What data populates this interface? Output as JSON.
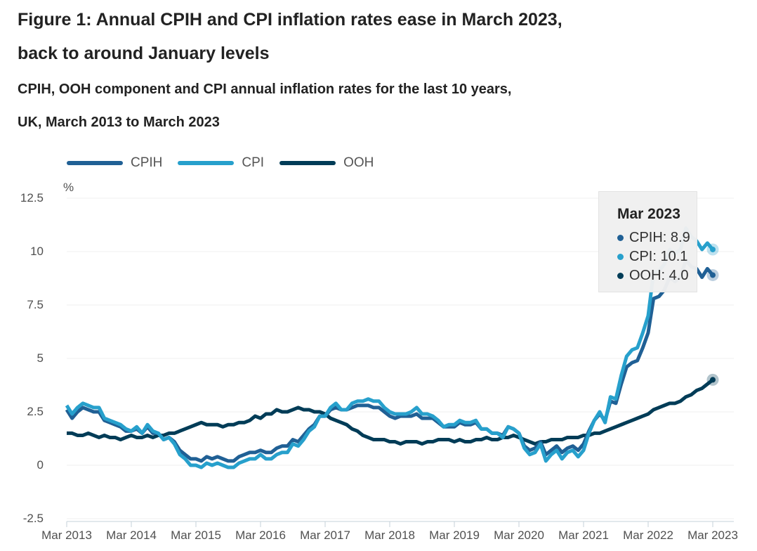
{
  "header": {
    "title_line1": "Figure 1: Annual CPIH and CPI inflation rates ease in March 2023,",
    "title_line2": "back to around January levels",
    "subtitle_line1": "CPIH, OOH component and CPI annual inflation rates for the last 10 years,",
    "subtitle_line2": "UK, March 2013 to March 2023"
  },
  "legend": {
    "items": [
      {
        "label": "CPIH",
        "color": "#206095"
      },
      {
        "label": "CPI",
        "color": "#27A0CC"
      },
      {
        "label": "OOH",
        "color": "#003C57"
      }
    ]
  },
  "tooltip": {
    "date": "Mar 2023",
    "rows": [
      {
        "text": "CPIH: 8.9",
        "color": "#206095"
      },
      {
        "text": "CPI: 10.1",
        "color": "#27A0CC"
      },
      {
        "text": "OOH: 4.0",
        "color": "#003C57"
      }
    ]
  },
  "colors": {
    "gridline": "#efefef",
    "axis": "#c5d1da",
    "tick_text": "#505050"
  },
  "chart_data": {
    "type": "line",
    "title": "CPIH, OOH component and CPI annual inflation rates for the last 10 years, UK, March 2013 to March 2023",
    "ylabel": "%",
    "xlabel": "",
    "ylim": [
      -2.5,
      12.5
    ],
    "grid": "horizontal",
    "legend_position": "top",
    "x_start": "Mar 2013",
    "x_end": "Mar 2023",
    "frequency": "monthly",
    "y_ticks": [
      -2.5,
      0,
      2.5,
      5,
      7.5,
      10,
      12.5
    ],
    "y_tick_labels": [
      "-2.5",
      "0",
      "2.5",
      "5",
      "7.5",
      "10",
      "12.5"
    ],
    "x_tick_labels": [
      "Mar 2013",
      "Mar 2014",
      "Mar 2015",
      "Mar 2016",
      "Mar 2017",
      "Mar 2018",
      "Mar 2019",
      "Mar 2020",
      "Mar 2021",
      "Mar 2022",
      "Mar 2023"
    ],
    "x_tick_month_indices": [
      0,
      12,
      24,
      36,
      48,
      60,
      72,
      84,
      96,
      108,
      120
    ],
    "draw_order": [
      2,
      0,
      1
    ],
    "series": [
      {
        "name": "CPIH",
        "color": "#206095",
        "values": [
          2.6,
          2.2,
          2.5,
          2.7,
          2.6,
          2.5,
          2.5,
          2.1,
          2.0,
          1.9,
          1.8,
          1.6,
          1.6,
          1.7,
          1.5,
          1.8,
          1.5,
          1.5,
          1.2,
          1.3,
          1.1,
          0.7,
          0.5,
          0.3,
          0.3,
          0.2,
          0.4,
          0.3,
          0.4,
          0.3,
          0.2,
          0.2,
          0.4,
          0.5,
          0.6,
          0.6,
          0.7,
          0.6,
          0.6,
          0.8,
          0.9,
          0.9,
          1.2,
          1.1,
          1.4,
          1.7,
          1.9,
          2.3,
          2.3,
          2.6,
          2.7,
          2.6,
          2.6,
          2.7,
          2.8,
          2.8,
          2.8,
          2.7,
          2.7,
          2.5,
          2.3,
          2.2,
          2.3,
          2.3,
          2.3,
          2.4,
          2.2,
          2.2,
          2.2,
          2.0,
          1.8,
          1.8,
          1.8,
          2.0,
          1.9,
          1.9,
          2.0,
          1.7,
          1.7,
          1.5,
          1.5,
          1.4,
          1.8,
          1.7,
          1.5,
          0.9,
          0.7,
          0.8,
          1.1,
          0.5,
          0.7,
          0.9,
          0.6,
          0.8,
          0.9,
          0.7,
          1.0,
          1.6,
          2.1,
          2.4,
          2.1,
          3.0,
          2.9,
          3.8,
          4.6,
          4.8,
          4.9,
          5.5,
          6.2,
          7.8,
          7.9,
          8.2,
          8.8,
          8.6,
          8.8,
          9.6,
          9.3,
          9.2,
          8.8,
          9.2,
          8.9
        ]
      },
      {
        "name": "CPI",
        "color": "#27A0CC",
        "values": [
          2.8,
          2.4,
          2.7,
          2.9,
          2.8,
          2.7,
          2.7,
          2.2,
          2.1,
          2.0,
          1.9,
          1.7,
          1.6,
          1.8,
          1.5,
          1.9,
          1.6,
          1.5,
          1.2,
          1.3,
          1.0,
          0.5,
          0.3,
          0.0,
          0.0,
          -0.1,
          0.1,
          0.0,
          0.1,
          0.0,
          -0.1,
          -0.1,
          0.1,
          0.2,
          0.3,
          0.3,
          0.5,
          0.3,
          0.3,
          0.5,
          0.6,
          0.6,
          1.0,
          0.9,
          1.2,
          1.6,
          1.8,
          2.3,
          2.3,
          2.7,
          2.9,
          2.6,
          2.6,
          2.9,
          3.0,
          3.0,
          3.1,
          3.0,
          3.0,
          2.7,
          2.5,
          2.4,
          2.4,
          2.4,
          2.5,
          2.7,
          2.4,
          2.4,
          2.3,
          2.1,
          1.8,
          1.9,
          1.9,
          2.1,
          2.0,
          2.0,
          2.1,
          1.7,
          1.7,
          1.5,
          1.5,
          1.3,
          1.8,
          1.7,
          1.5,
          0.8,
          0.5,
          0.6,
          1.0,
          0.2,
          0.5,
          0.7,
          0.3,
          0.6,
          0.7,
          0.4,
          0.7,
          1.5,
          2.1,
          2.5,
          2.0,
          3.2,
          3.1,
          4.2,
          5.1,
          5.4,
          5.5,
          6.2,
          7.0,
          9.0,
          9.1,
          9.4,
          10.1,
          9.9,
          10.1,
          11.1,
          10.7,
          10.5,
          10.1,
          10.4,
          10.1
        ]
      },
      {
        "name": "OOH",
        "color": "#003C57",
        "values": [
          1.5,
          1.5,
          1.4,
          1.4,
          1.5,
          1.4,
          1.3,
          1.4,
          1.3,
          1.3,
          1.2,
          1.3,
          1.4,
          1.3,
          1.3,
          1.4,
          1.3,
          1.4,
          1.4,
          1.5,
          1.5,
          1.6,
          1.7,
          1.8,
          1.9,
          2.0,
          1.9,
          1.9,
          1.9,
          1.8,
          1.9,
          1.9,
          2.0,
          2.0,
          2.1,
          2.3,
          2.2,
          2.4,
          2.4,
          2.6,
          2.5,
          2.5,
          2.6,
          2.7,
          2.6,
          2.6,
          2.5,
          2.5,
          2.4,
          2.2,
          2.1,
          2.0,
          1.9,
          1.7,
          1.6,
          1.4,
          1.3,
          1.2,
          1.2,
          1.2,
          1.1,
          1.1,
          1.0,
          1.1,
          1.1,
          1.1,
          1.0,
          1.1,
          1.1,
          1.2,
          1.2,
          1.2,
          1.1,
          1.2,
          1.1,
          1.1,
          1.2,
          1.2,
          1.3,
          1.2,
          1.2,
          1.3,
          1.3,
          1.4,
          1.3,
          1.2,
          1.1,
          1.0,
          1.1,
          1.1,
          1.2,
          1.2,
          1.2,
          1.3,
          1.3,
          1.3,
          1.4,
          1.4,
          1.5,
          1.5,
          1.6,
          1.7,
          1.8,
          1.9,
          2.0,
          2.1,
          2.2,
          2.3,
          2.4,
          2.6,
          2.7,
          2.8,
          2.9,
          2.9,
          3.0,
          3.2,
          3.3,
          3.5,
          3.6,
          3.8,
          4.0
        ]
      }
    ]
  }
}
